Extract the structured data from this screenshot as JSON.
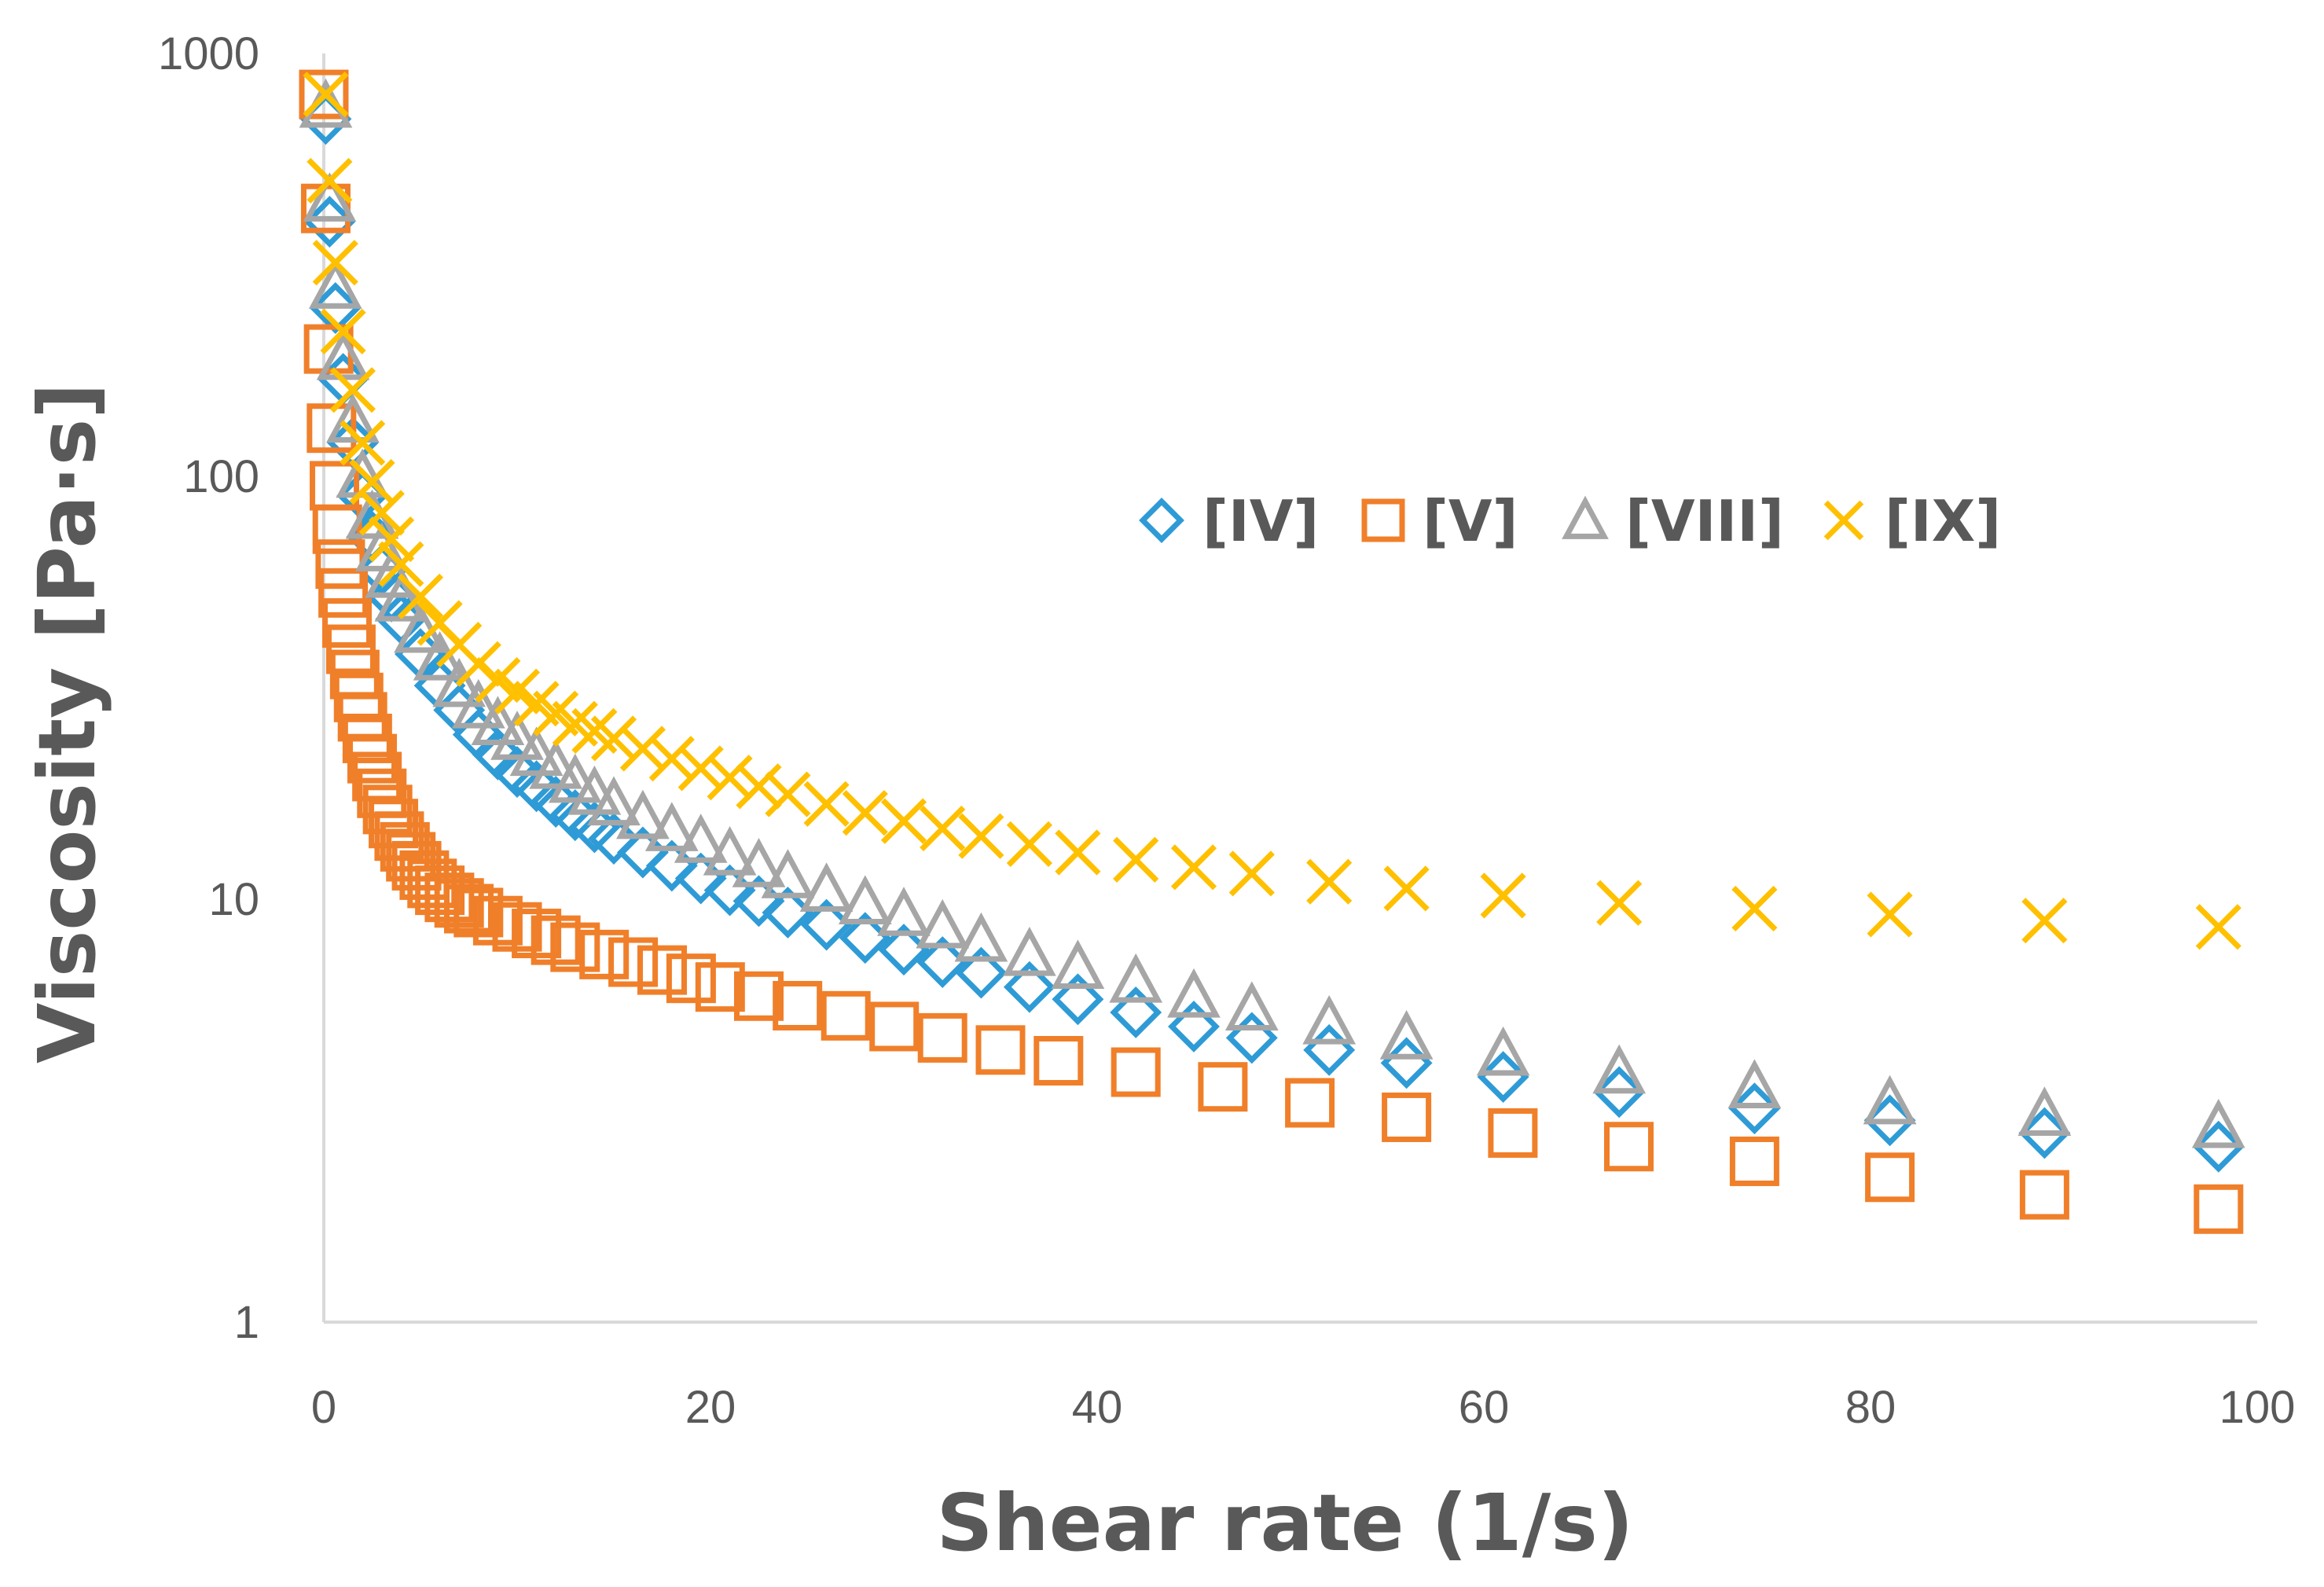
{
  "chart_data": {
    "type": "scatter",
    "xlabel": "Shear rate (1/s)",
    "ylabel": "Viscosity [Pa·s]",
    "xlim": [
      0,
      100
    ],
    "ylim": [
      1,
      1000
    ],
    "yscale": "log",
    "grid": false,
    "legend_position": "top-right",
    "x_ticks": [
      "0",
      "20",
      "40",
      "60",
      "80",
      "100"
    ],
    "y_ticks": [
      "1",
      "10",
      "100",
      "1000"
    ],
    "colors": {
      "IV": "#2E9BD6",
      "V": "#F07F2A",
      "VIII": "#A6A6A6",
      "IX": "#FFC000",
      "axis": "#D9D9D9",
      "text": "#595959"
    },
    "series": [
      {
        "name": "[IV]",
        "marker": "diamond",
        "color": "#2E9BD6",
        "x": [
          0.1,
          0.3,
          0.6,
          1,
          1.5,
          2,
          2.5,
          3,
          3.5,
          4,
          5,
          6,
          7,
          8,
          9,
          10,
          11,
          12,
          13,
          14,
          15,
          16.5,
          18,
          19.5,
          21,
          22.5,
          24,
          26,
          28,
          30,
          32,
          34,
          36.5,
          39,
          42,
          45,
          48,
          52,
          56,
          61,
          67,
          74,
          81,
          89,
          98
        ],
        "y": [
          700,
          400,
          250,
          170,
          120,
          90,
          72,
          60,
          52,
          46,
          38,
          32,
          28,
          24.5,
          22,
          20,
          18.5,
          17,
          15.8,
          14.8,
          13.9,
          12.9,
          12,
          11.2,
          10.5,
          9.9,
          9.3,
          8.7,
          8.1,
          7.6,
          7.1,
          6.7,
          6.2,
          5.8,
          5.4,
          5.0,
          4.7,
          4.4,
          4.1,
          3.8,
          3.5,
          3.2,
          3.0,
          2.8,
          2.6
        ]
      },
      {
        "name": "[V]",
        "marker": "square",
        "color": "#F07F2A",
        "x": [
          0,
          0.1,
          0.25,
          0.4,
          0.55,
          0.7,
          0.85,
          1,
          1.2,
          1.4,
          1.6,
          1.8,
          2,
          2.25,
          2.5,
          2.75,
          3,
          3.3,
          3.6,
          3.9,
          4.2,
          4.5,
          4.8,
          5.2,
          5.6,
          6,
          6.5,
          7,
          7.5,
          8,
          9,
          10,
          11,
          12,
          13,
          14.5,
          16,
          17.5,
          19,
          20.5,
          22.5,
          24.5,
          27,
          29.5,
          32,
          35,
          38,
          42,
          46.5,
          51,
          56,
          61.5,
          67.5,
          74,
          81,
          89,
          98
        ],
        "y": [
          800,
          430,
          200,
          130,
          95,
          75,
          62,
          53,
          45,
          39,
          34,
          30,
          27,
          24,
          21.5,
          19.5,
          17.8,
          16.3,
          15.1,
          14.1,
          13.3,
          12.6,
          12.0,
          11.4,
          10.9,
          10.5,
          10.1,
          9.8,
          9.5,
          9.3,
          8.9,
          8.6,
          8.3,
          8.0,
          7.7,
          7.4,
          7.1,
          6.8,
          6.5,
          6.2,
          5.9,
          5.6,
          5.3,
          5.0,
          4.7,
          4.4,
          4.15,
          3.9,
          3.6,
          3.3,
          3.05,
          2.8,
          2.6,
          2.4,
          2.2,
          2.0,
          1.85
        ]
      },
      {
        "name": "[VIII]",
        "marker": "triangle",
        "color": "#A6A6A6",
        "x": [
          0.1,
          0.3,
          0.6,
          1,
          1.5,
          2,
          2.5,
          3,
          3.5,
          4,
          5,
          6,
          7,
          8,
          9,
          10,
          11,
          12,
          13,
          14,
          15,
          16.5,
          18,
          19.5,
          21,
          22.5,
          24,
          26,
          28,
          30,
          32,
          34,
          36.5,
          39,
          42,
          45,
          48,
          52,
          56,
          61,
          67,
          74,
          81,
          89,
          98
        ],
        "y": [
          750,
          450,
          280,
          190,
          135,
          100,
          80,
          67,
          58,
          51,
          43,
          37,
          32,
          28.5,
          26,
          24,
          22,
          20.5,
          19,
          17.8,
          16.8,
          15.6,
          14.6,
          13.7,
          12.8,
          12.0,
          11.3,
          10.5,
          9.8,
          9.2,
          8.6,
          8.0,
          7.4,
          6.9,
          6.4,
          5.9,
          5.5,
          5.1,
          4.7,
          4.3,
          3.9,
          3.6,
          3.3,
          3.1,
          2.9
        ]
      },
      {
        "name": "[IX]",
        "marker": "x",
        "color": "#FFC000",
        "x": [
          0.1,
          0.3,
          0.6,
          1,
          1.5,
          2,
          2.5,
          3,
          3.5,
          4,
          5,
          6,
          7,
          8,
          9,
          10,
          11,
          12,
          13,
          14,
          15,
          16.5,
          18,
          19.5,
          21,
          22.5,
          24,
          26,
          28,
          30,
          32,
          34,
          36.5,
          39,
          42,
          45,
          48,
          52,
          56,
          61,
          67,
          74,
          81,
          89,
          98
        ],
        "y": [
          800,
          500,
          320,
          220,
          160,
          120,
          97,
          82,
          71,
          62,
          52,
          45,
          40,
          36,
          33,
          31,
          29,
          27.5,
          26,
          25,
          24,
          22.7,
          21.5,
          20.4,
          19.4,
          18.5,
          17.7,
          16.8,
          16.0,
          15.3,
          14.7,
          14.1,
          13.5,
          12.9,
          12.4,
          11.9,
          11.5,
          11.0,
          10.6,
          10.2,
          9.8,
          9.5,
          9.2,
          8.9,
          8.6
        ]
      }
    ]
  }
}
